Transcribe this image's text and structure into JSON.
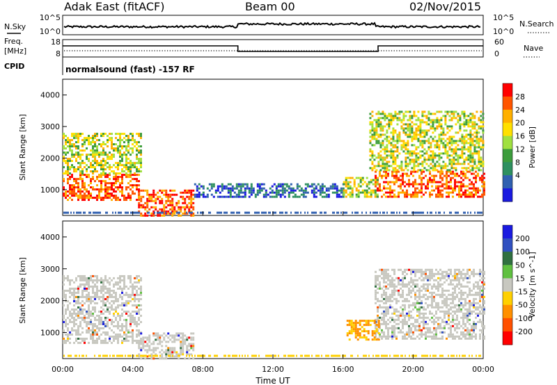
{
  "header": {
    "station": "Adak East (fitACF)",
    "beam": "Beam 00",
    "date": "02/Nov/2015"
  },
  "top_panels": {
    "nsky": {
      "label": "N.Sky",
      "ticks": [
        "10^5",
        "10^0"
      ]
    },
    "nsearch": {
      "label": "N.Search",
      "ticks": [
        "10^5",
        "10^0"
      ]
    },
    "freq": {
      "label_line1": "Freq.",
      "label_line2": "[MHz]",
      "ticks": [
        "18",
        "8"
      ]
    },
    "nave": {
      "label": "Nave",
      "ticks": [
        "60",
        "0"
      ]
    },
    "cpid": {
      "label": "CPID",
      "text": "normalsound (fast) -157 RF"
    }
  },
  "chart_data": [
    {
      "type": "heatmap",
      "name": "power",
      "ylabel": "Slant Range [km]",
      "xlabel": "",
      "x_ticks": [
        "00:00",
        "04:00",
        "08:00",
        "12:00",
        "16:00",
        "20:00",
        "00:00"
      ],
      "y_ticks": [
        "4000",
        "3000",
        "2000",
        "1000"
      ],
      "y_tick_values": [
        4000,
        3000,
        2000,
        1000
      ],
      "ylim": [
        180,
        4500
      ],
      "xlim_hours": [
        0,
        24
      ],
      "colorbar": {
        "label": "Power [dB]",
        "ticks": [
          "28",
          "24",
          "20",
          "16",
          "12",
          "8",
          "4"
        ],
        "colors": [
          "#ff0000",
          "#ff5500",
          "#ffb000",
          "#ffe000",
          "#a0e040",
          "#3c9c3c",
          "#2e9060",
          "#3060b0",
          "#1a1ae0"
        ]
      },
      "regions": [
        {
          "t0": 0.0,
          "t1": 4.3,
          "r0": 700,
          "r1": 1500,
          "level": "high"
        },
        {
          "t0": 0.0,
          "t1": 4.5,
          "r0": 1500,
          "r1": 2800,
          "level": "mid"
        },
        {
          "t0": 17.8,
          "t1": 24.0,
          "r0": 800,
          "r1": 1600,
          "level": "high"
        },
        {
          "t0": 17.5,
          "t1": 24.0,
          "r0": 1600,
          "r1": 3500,
          "level": "mid"
        },
        {
          "t0": 4.3,
          "t1": 7.5,
          "r0": 200,
          "r1": 1000,
          "level": "high"
        },
        {
          "t0": 7.5,
          "t1": 16.0,
          "r0": 800,
          "r1": 1200,
          "level": "low"
        },
        {
          "t0": 16.0,
          "t1": 18.0,
          "r0": 800,
          "r1": 1400,
          "level": "mid"
        }
      ]
    },
    {
      "type": "heatmap",
      "name": "velocity",
      "ylabel": "Slant Range [km]",
      "xlabel": "Time UT",
      "x_ticks": [
        "00:00",
        "04:00",
        "08:00",
        "12:00",
        "16:00",
        "20:00",
        "00:00"
      ],
      "y_ticks": [
        "4000",
        "3000",
        "2000",
        "1000"
      ],
      "y_tick_values": [
        4000,
        3000,
        2000,
        1000
      ],
      "ylim": [
        180,
        4500
      ],
      "xlim_hours": [
        0,
        24
      ],
      "colorbar": {
        "label": "Velocity [m s^-1]",
        "ticks": [
          "200",
          "100",
          "50",
          "15",
          "-15",
          "-50",
          "-100",
          "-200"
        ],
        "colors": [
          "#1a1ae0",
          "#3050c0",
          "#307040",
          "#60c040",
          "#c8c8c0",
          "#ffd000",
          "#ff9000",
          "#ff5000",
          "#ff0000"
        ]
      },
      "regions": [
        {
          "t0": 0.0,
          "t1": 4.5,
          "r0": 700,
          "r1": 2800,
          "level": "ground"
        },
        {
          "t0": 17.8,
          "t1": 24.0,
          "r0": 800,
          "r1": 3000,
          "level": "ground"
        },
        {
          "t0": 4.3,
          "t1": 7.5,
          "r0": 200,
          "r1": 1000,
          "level": "ground"
        },
        {
          "t0": 16.2,
          "t1": 18.0,
          "r0": 800,
          "r1": 1400,
          "level": "negative"
        }
      ]
    }
  ]
}
